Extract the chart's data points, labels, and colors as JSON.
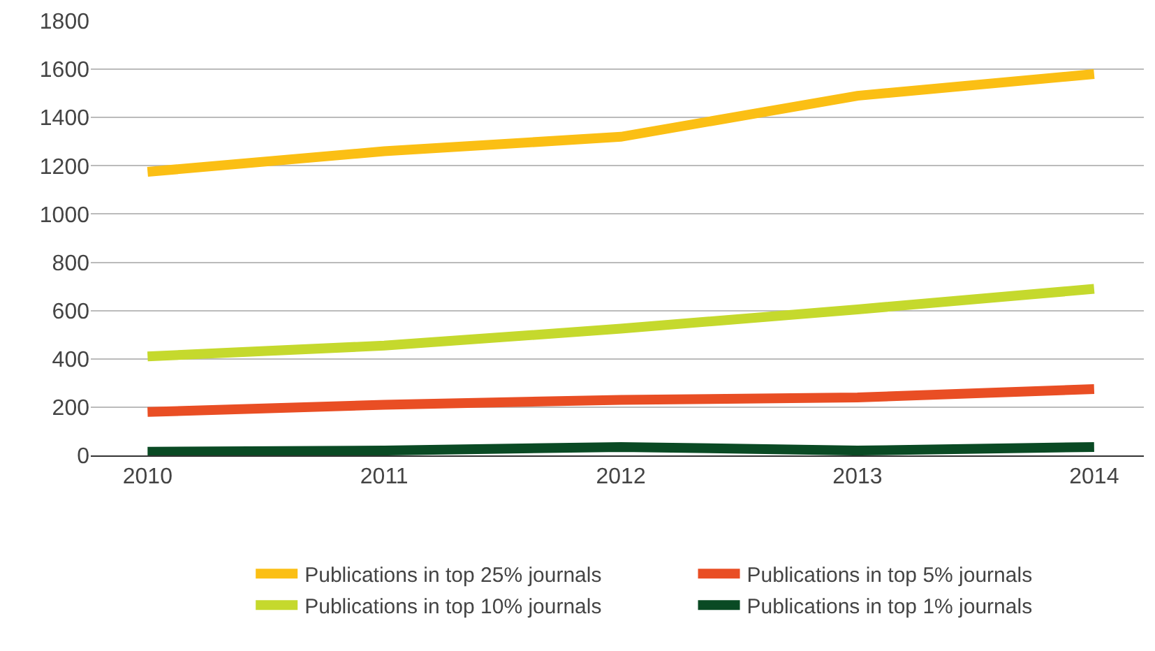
{
  "chart_data": {
    "type": "line",
    "x": [
      2010,
      2011,
      2012,
      2013,
      2014
    ],
    "series": [
      {
        "name": "Publications in top 25% journals",
        "color": "#fbbf14",
        "values": [
          1175,
          1260,
          1320,
          1490,
          1580
        ]
      },
      {
        "name": "Publications in top 5% journals",
        "color": "#e94e24",
        "values": [
          180,
          210,
          230,
          240,
          275
        ]
      },
      {
        "name": "Publications in top 10% journals",
        "color": "#c5d92d",
        "values": [
          410,
          455,
          525,
          605,
          690
        ]
      },
      {
        "name": "Publications in top 1% journals",
        "color": "#0a4a24",
        "values": [
          15,
          20,
          35,
          20,
          35
        ]
      }
    ],
    "xlim": [
      2009.76,
      2014.21
    ],
    "xticks": [
      2010,
      2011,
      2012,
      2013,
      2014
    ],
    "ylim": [
      0,
      1800
    ],
    "yticks": [
      0,
      200,
      400,
      600,
      800,
      1000,
      1200,
      1400,
      1600,
      1800
    ],
    "grid": "y",
    "legend": "bottom",
    "marker": "none",
    "line_style": "solid"
  }
}
